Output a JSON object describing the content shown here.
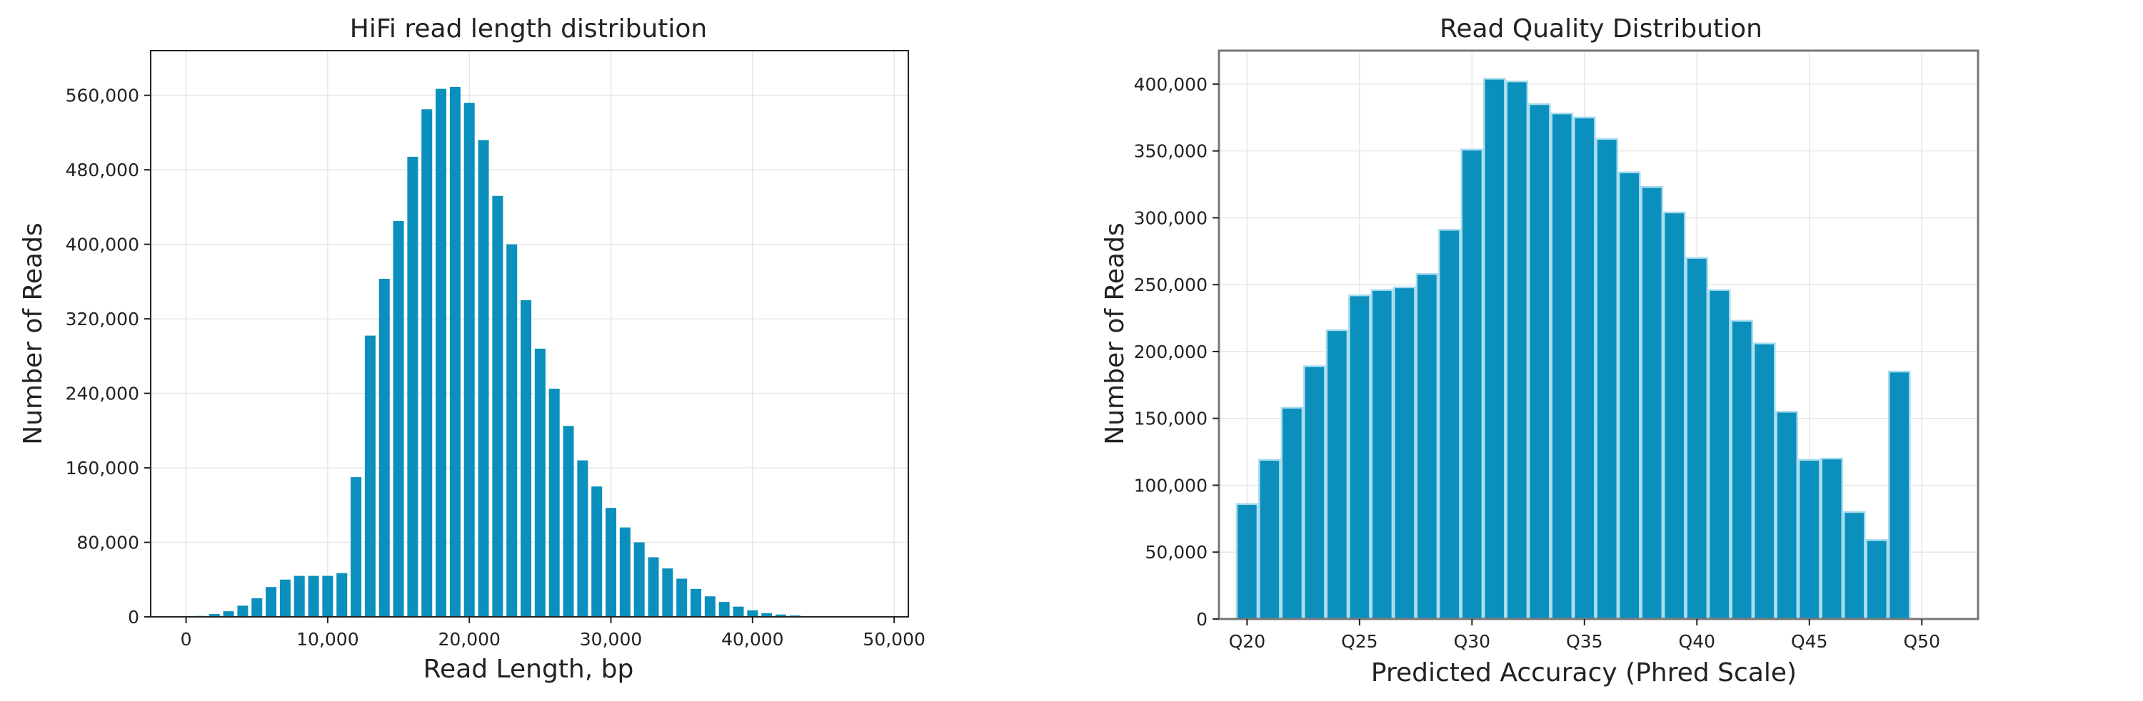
{
  "chart_data": [
    {
      "type": "bar",
      "title": "HiFi read length distribution",
      "xlabel": "Read Length, bp",
      "ylabel": "Number of Reads",
      "xlim": [
        -2500,
        51000
      ],
      "ylim": [
        0,
        608000
      ],
      "xticks": [
        0,
        10000,
        20000,
        30000,
        40000,
        50000
      ],
      "xtick_labels": [
        "0",
        "10,000",
        "20,000",
        "30,000",
        "40,000",
        "50,000"
      ],
      "yticks": [
        0,
        80000,
        160000,
        240000,
        320000,
        400000,
        480000,
        560000
      ],
      "ytick_labels": [
        "0",
        "80,000",
        "160,000",
        "240,000",
        "320,000",
        "400,000",
        "480,000",
        "560,000"
      ],
      "bin_width": 1000,
      "grid": true,
      "color": "#0b8fbd",
      "x": [
        0,
        1000,
        2000,
        3000,
        4000,
        5000,
        6000,
        7000,
        8000,
        9000,
        10000,
        11000,
        12000,
        13000,
        14000,
        15000,
        16000,
        17000,
        18000,
        19000,
        20000,
        21000,
        22000,
        23000,
        24000,
        25000,
        26000,
        27000,
        28000,
        29000,
        30000,
        31000,
        32000,
        33000,
        34000,
        35000,
        36000,
        37000,
        38000,
        39000,
        40000,
        41000,
        42000,
        43000,
        44000,
        45000,
        46000,
        47000,
        48000,
        49000
      ],
      "values": [
        0,
        1000,
        3000,
        6000,
        12000,
        20000,
        32000,
        40000,
        44000,
        44000,
        44000,
        47000,
        150000,
        302000,
        363000,
        425000,
        494000,
        545000,
        567000,
        569000,
        552000,
        512000,
        452000,
        400000,
        340000,
        288000,
        245000,
        205000,
        168000,
        140000,
        117000,
        96000,
        80000,
        64000,
        52000,
        41000,
        30000,
        22000,
        16000,
        11000,
        7000,
        4000,
        2500,
        1500,
        800,
        400,
        200,
        100,
        50,
        20
      ]
    },
    {
      "type": "bar",
      "title": "Read Quality Distribution",
      "xlabel": "Predicted Accuracy (Phred Scale)",
      "ylabel": "Number of Reads",
      "xlim": [
        18.75,
        52.5
      ],
      "ylim": [
        0,
        425000
      ],
      "xticks": [
        20,
        25,
        30,
        35,
        40,
        45,
        50
      ],
      "xtick_labels": [
        "Q20",
        "Q25",
        "Q30",
        "Q35",
        "Q40",
        "Q45",
        "Q50"
      ],
      "yticks": [
        0,
        50000,
        100000,
        150000,
        200000,
        250000,
        300000,
        350000,
        400000
      ],
      "ytick_labels": [
        "0",
        "50,000",
        "100,000",
        "150,000",
        "200,000",
        "250,000",
        "300,000",
        "350,000",
        "400,000"
      ],
      "grid": true,
      "color": "#0b8fbd",
      "edge_color": "#a8dcee",
      "categories": [
        20,
        21,
        22,
        23,
        24,
        25,
        26,
        27,
        28,
        29,
        30,
        31,
        32,
        33,
        34,
        35,
        36,
        37,
        38,
        39,
        40,
        41,
        42,
        43,
        44,
        45,
        46,
        47,
        48,
        49,
        50
      ],
      "values": [
        86000,
        119000,
        158000,
        189000,
        216000,
        242000,
        246000,
        248000,
        258000,
        291000,
        351000,
        404000,
        402000,
        385000,
        378000,
        375000,
        359000,
        334000,
        323000,
        304000,
        270000,
        246000,
        223000,
        206000,
        155000,
        119000,
        120000,
        80000,
        59000,
        185000,
        0
      ]
    }
  ]
}
